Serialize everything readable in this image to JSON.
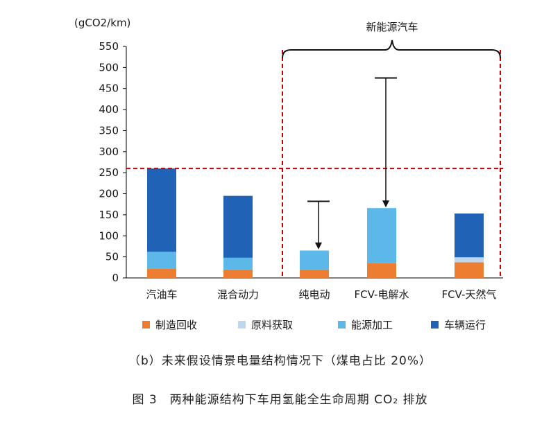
{
  "chart_data": {
    "type": "bar",
    "stacked": true,
    "ylabel": "(gCO2/km)",
    "ylim": [
      0,
      550
    ],
    "yticks": [
      0,
      50,
      100,
      150,
      200,
      250,
      300,
      350,
      400,
      450,
      500,
      550
    ],
    "categories": [
      "汽油车",
      "混合动力",
      "纯电动",
      "FCV-电解水",
      "FCV-天然气"
    ],
    "series": [
      {
        "name": "制造回收",
        "color": "#ED7D31",
        "values": [
          22,
          20,
          20,
          35,
          37
        ]
      },
      {
        "name": "原料获取",
        "color": "#BDD7EE",
        "values": [
          0,
          0,
          0,
          0,
          12
        ]
      },
      {
        "name": "能源加工",
        "color": "#5BB8E8",
        "values": [
          40,
          28,
          45,
          131,
          0
        ]
      },
      {
        "name": "车辆运行",
        "color": "#2062B5",
        "values": [
          198,
          147,
          0,
          0,
          104
        ]
      }
    ],
    "reference_line": {
      "value": 260,
      "color": "#C00000",
      "style": "dashed"
    },
    "arrows": [
      {
        "category": "纯电动",
        "from": 182,
        "to": 66
      },
      {
        "category": "FCV-电解水",
        "from": 475,
        "to": 166
      }
    ],
    "bracket": {
      "label": "新能源汽车",
      "from_category": "纯电动",
      "to_category": "FCV-天然气"
    },
    "legend_position": "bottom"
  },
  "captions": {
    "subtitle": "（b）未来假设情景电量结构情况下（煤电占比 20%）",
    "figure": "图 3　两种能源结构下车用氢能全生命周期 CO₂ 排放"
  }
}
